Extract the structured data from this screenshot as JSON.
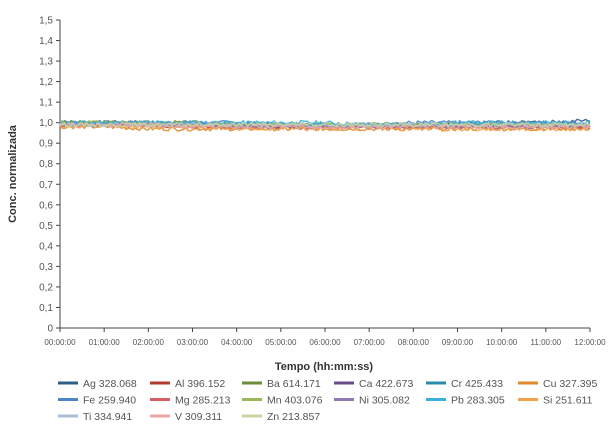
{
  "chart_data": {
    "type": "line",
    "title": "",
    "xlabel": "Tempo (hh:mm:ss)",
    "ylabel": "Conc. normalizada",
    "ylim": [
      0,
      1.5
    ],
    "xlim": [
      "00:00:00",
      "12:00:00"
    ],
    "y_ticks": [
      "0",
      "0,1",
      "0,2",
      "0,3",
      "0,4",
      "0,5",
      "0,6",
      "0,7",
      "0,8",
      "0,9",
      "1,0",
      "1,1",
      "1,2",
      "1,3",
      "1,4",
      "1,5"
    ],
    "x_ticks": [
      "00:00:00",
      "01:00:00",
      "02:00:00",
      "03:00:00",
      "04:00:00",
      "05:00:00",
      "06:00:00",
      "07:00:00",
      "08:00:00",
      "09:00:00",
      "10:00:00",
      "11:00:00",
      "12:00:00"
    ],
    "grid": false,
    "legend_position": "bottom",
    "x": [
      "00:00:00",
      "01:00:00",
      "02:00:00",
      "03:00:00",
      "04:00:00",
      "05:00:00",
      "06:00:00",
      "07:00:00",
      "08:00:00",
      "09:00:00",
      "10:00:00",
      "11:00:00",
      "12:00:00"
    ],
    "series": [
      {
        "name": "Ag 328.068",
        "color": "#2e5f8a",
        "values": [
          1.0,
          1.0,
          1.0,
          0.99,
          0.99,
          0.99,
          0.99,
          0.99,
          0.99,
          0.99,
          1.0,
          1.0,
          1.01
        ]
      },
      {
        "name": "Al 396.152",
        "color": "#b03a2e",
        "values": [
          0.99,
          0.99,
          0.99,
          0.98,
          0.98,
          0.98,
          0.98,
          0.98,
          0.98,
          0.98,
          0.98,
          0.98,
          0.98
        ]
      },
      {
        "name": "Ba 614.171",
        "color": "#6a8f3a",
        "values": [
          1.0,
          1.0,
          1.0,
          1.0,
          0.99,
          0.99,
          0.99,
          0.99,
          0.99,
          0.99,
          0.99,
          0.99,
          0.99
        ]
      },
      {
        "name": "Ca 422.673",
        "color": "#6b4c8a",
        "values": [
          0.99,
          0.99,
          0.99,
          0.99,
          0.99,
          0.98,
          0.98,
          0.98,
          0.98,
          0.98,
          0.98,
          0.98,
          0.98
        ]
      },
      {
        "name": "Cr 425.433",
        "color": "#2a8ca8",
        "values": [
          0.99,
          0.99,
          0.99,
          0.99,
          0.99,
          0.99,
          0.99,
          0.99,
          0.99,
          0.99,
          0.99,
          0.99,
          0.99
        ]
      },
      {
        "name": "Cu 327.395",
        "color": "#e08a2a",
        "values": [
          0.98,
          0.98,
          0.97,
          0.97,
          0.97,
          0.97,
          0.97,
          0.97,
          0.97,
          0.97,
          0.97,
          0.97,
          0.97
        ]
      },
      {
        "name": "Fe 259.940",
        "color": "#4a86c8",
        "values": [
          1.0,
          1.0,
          1.0,
          1.0,
          1.0,
          0.99,
          0.99,
          0.99,
          1.0,
          1.0,
          1.0,
          1.0,
          1.0
        ]
      },
      {
        "name": "Mg 285.213",
        "color": "#d65f5f",
        "values": [
          0.99,
          0.99,
          0.99,
          0.98,
          0.98,
          0.98,
          0.98,
          0.98,
          0.98,
          0.98,
          0.98,
          0.98,
          0.98
        ]
      },
      {
        "name": "Mn 403.076",
        "color": "#9ab85a",
        "values": [
          1.0,
          1.0,
          1.0,
          0.99,
          0.99,
          0.99,
          0.99,
          0.99,
          0.99,
          0.99,
          0.99,
          0.99,
          0.99
        ]
      },
      {
        "name": "Ni 305.082",
        "color": "#8e7bb0",
        "values": [
          0.99,
          0.99,
          0.99,
          0.99,
          0.98,
          0.98,
          0.98,
          0.98,
          0.98,
          0.98,
          0.98,
          0.98,
          0.98
        ]
      },
      {
        "name": "Pb 283.305",
        "color": "#3ab0d8",
        "values": [
          1.0,
          1.0,
          1.0,
          1.0,
          1.0,
          1.0,
          1.0,
          0.99,
          0.99,
          1.0,
          1.0,
          1.0,
          1.0
        ]
      },
      {
        "name": "Si 251.611",
        "color": "#f0a050",
        "values": [
          0.98,
          0.98,
          0.98,
          0.98,
          0.97,
          0.97,
          0.97,
          0.97,
          0.97,
          0.97,
          0.97,
          0.97,
          0.97
        ]
      },
      {
        "name": "Ti 334.941",
        "color": "#a9bedb",
        "values": [
          0.99,
          0.99,
          0.99,
          0.99,
          0.99,
          0.99,
          0.99,
          0.99,
          0.99,
          0.99,
          0.99,
          0.99,
          0.99
        ]
      },
      {
        "name": "V 309.311",
        "color": "#e8a8a8",
        "values": [
          0.99,
          0.99,
          0.99,
          0.98,
          0.98,
          0.98,
          0.98,
          0.98,
          0.98,
          0.98,
          0.98,
          0.98,
          0.98
        ]
      },
      {
        "name": "Zn 213.857",
        "color": "#c8d4a0",
        "values": [
          0.99,
          0.99,
          0.99,
          0.99,
          0.99,
          0.99,
          0.99,
          0.99,
          0.99,
          0.99,
          0.99,
          0.99,
          0.99
        ]
      }
    ]
  }
}
